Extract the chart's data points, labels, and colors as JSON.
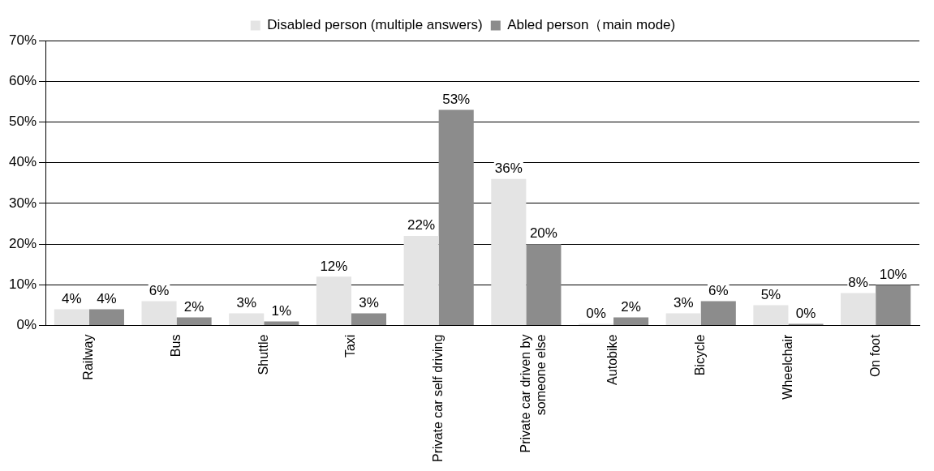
{
  "chart_data": {
    "type": "bar",
    "categories": [
      "Railway",
      "Bus",
      "Shuttle",
      "Taxi",
      "Private car self driving",
      "Private car driven by someone else",
      "Autobike",
      "Bicycle",
      "Wheelchair",
      "On foot"
    ],
    "series": [
      {
        "name": "Disabled person (multiple answers)",
        "color": "#e4e4e4",
        "values": [
          4,
          6,
          3,
          12,
          22,
          36,
          0,
          3,
          5,
          8
        ],
        "value_labels": [
          "4%",
          "6%",
          "3%",
          "12%",
          "22%",
          "36%",
          "0%",
          "3%",
          "5%",
          "8%"
        ]
      },
      {
        "name": "Abled person（main mode)",
        "color": "#8c8c8c",
        "values": [
          4,
          2,
          1,
          3,
          53,
          20,
          2,
          6,
          0,
          10
        ],
        "value_labels": [
          "4%",
          "2%",
          "1%",
          "3%",
          "53%",
          "20%",
          "2%",
          "6%",
          "0%",
          "10%"
        ]
      }
    ],
    "ylim": [
      0,
      70
    ],
    "yticks": [
      {
        "value": 0,
        "label": "0%"
      },
      {
        "value": 10,
        "label": "10%"
      },
      {
        "value": 20,
        "label": "20%"
      },
      {
        "value": 30,
        "label": "30%"
      },
      {
        "value": 40,
        "label": "40%"
      },
      {
        "value": 50,
        "label": "50%"
      },
      {
        "value": 60,
        "label": "60%"
      },
      {
        "value": 70,
        "label": "70%"
      }
    ],
    "grid": "y",
    "legend": "top"
  }
}
